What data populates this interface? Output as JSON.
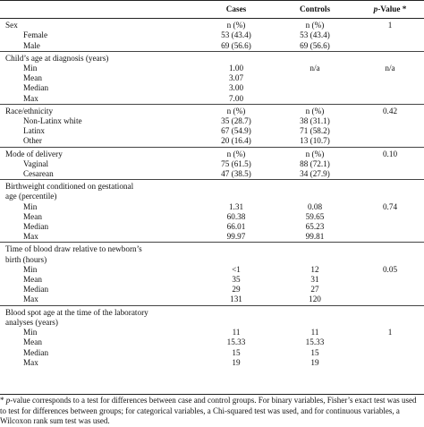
{
  "header": {
    "col0": "",
    "cases": "Cases",
    "controls": "Controls",
    "pvalue_prefix": "p",
    "pvalue_suffix": "-Value *"
  },
  "sections": [
    {
      "label": "Sex",
      "cases": "n (%)",
      "controls": "n (%)",
      "p": "1",
      "rows": [
        {
          "label": "Female",
          "cases": "53 (43.4)",
          "controls": "53 (43.4)"
        },
        {
          "label": "Male",
          "cases": "69 (56.6)",
          "controls": "69 (56.6)"
        }
      ]
    },
    {
      "label": "Child’s age at diagnosis (years)",
      "cases": "",
      "controls": "",
      "p": "",
      "rows": [
        {
          "label": "Min",
          "cases": "1.00",
          "controls": "n/a",
          "p": "n/a"
        },
        {
          "label": "Mean",
          "cases": "3.07",
          "controls": ""
        },
        {
          "label": "Median",
          "cases": "3.00",
          "controls": ""
        },
        {
          "label": "Max",
          "cases": "7.00",
          "controls": ""
        }
      ]
    },
    {
      "label": "Race/ethnicity",
      "cases": "n (%)",
      "controls": "n (%)",
      "p": "0.42",
      "rows": [
        {
          "label": "Non-Latinx white",
          "cases": "35 (28.7)",
          "controls": "38 (31.1)"
        },
        {
          "label": "Latinx",
          "cases": "67 (54.9)",
          "controls": "71 (58.2)"
        },
        {
          "label": "Other",
          "cases": "20 (16.4)",
          "controls": "13 (10.7)"
        }
      ]
    },
    {
      "label": "Mode of delivery",
      "cases": "n (%)",
      "controls": "n (%)",
      "p": "0.10",
      "rows": [
        {
          "label": "Vaginal",
          "cases": "75 (61.5)",
          "controls": "88 (72.1)"
        },
        {
          "label": "Cesarean",
          "cases": "47 (38.5)",
          "controls": "34 (27.9)"
        }
      ]
    },
    {
      "label": "Birthweight conditioned on gestational",
      "label2": "age (percentile)",
      "cases": "",
      "controls": "",
      "p": "",
      "rows": [
        {
          "label": "Min",
          "cases": "1.31",
          "controls": "0.08",
          "p": "0.74"
        },
        {
          "label": "Mean",
          "cases": "60.38",
          "controls": "59.65"
        },
        {
          "label": "Median",
          "cases": "66.01",
          "controls": "65.23"
        },
        {
          "label": "Max",
          "cases": "99.97",
          "controls": "99.81"
        }
      ]
    },
    {
      "label": "Time of blood draw relative to newborn’s",
      "label2": "birth (hours)",
      "cases": "",
      "controls": "",
      "p": "",
      "rows": [
        {
          "label": "Min",
          "cases": "<1",
          "controls": "12",
          "p": "0.05"
        },
        {
          "label": "Mean",
          "cases": "35",
          "controls": "31"
        },
        {
          "label": "Median",
          "cases": "29",
          "controls": "27"
        },
        {
          "label": "Max",
          "cases": "131",
          "controls": "120"
        }
      ]
    },
    {
      "label": "Blood spot age at the time of the laboratory",
      "label2": "analyses (years)",
      "cases": "",
      "controls": "",
      "p": "",
      "rows": [
        {
          "label": "Min",
          "cases": "11",
          "controls": "11",
          "p": "1"
        },
        {
          "label": "Mean",
          "cases": "15.33",
          "controls": "15.33"
        },
        {
          "label": "Median",
          "cases": "15",
          "controls": "15"
        },
        {
          "label": "Max",
          "cases": "19",
          "controls": "19"
        }
      ]
    }
  ],
  "footnote": {
    "star": "*",
    "p": "p",
    "text": "-value corresponds to a test for differences between case and control groups. For binary variables, Fisher’s exact test was used to test for differences between groups; for categorical variables, a Chi-squared test was used, and for continuous variables, a Wilcoxon rank sum test was used."
  }
}
